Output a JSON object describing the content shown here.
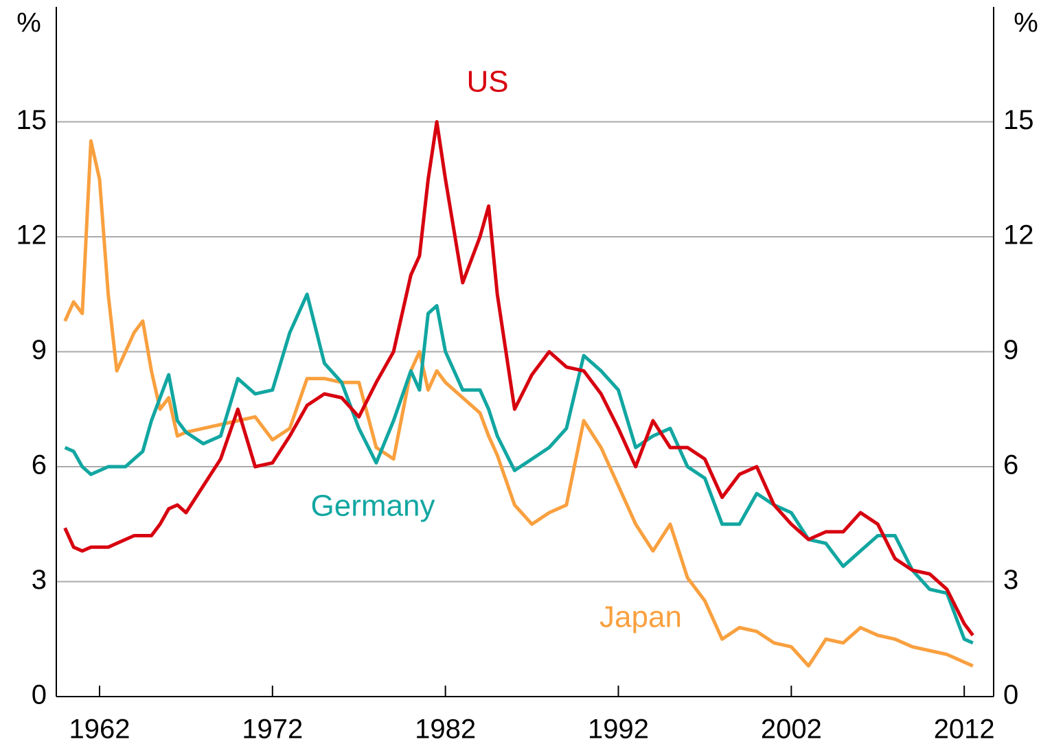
{
  "chart_data": {
    "type": "line",
    "x": [
      1960,
      1960.5,
      1961,
      1961.5,
      1962,
      1962.5,
      1963,
      1963.5,
      1964,
      1964.5,
      1965,
      1965.5,
      1966,
      1966.5,
      1967,
      1968,
      1969,
      1970,
      1971,
      1972,
      1973,
      1974,
      1975,
      1976,
      1977,
      1978,
      1979,
      1980,
      1980.5,
      1981,
      1981.5,
      1982,
      1983,
      1984,
      1984.5,
      1985,
      1986,
      1987,
      1988,
      1989,
      1990,
      1991,
      1992,
      1993,
      1994,
      1995,
      1996,
      1997,
      1998,
      1999,
      2000,
      2001,
      2002,
      2003,
      2004,
      2005,
      2006,
      2007,
      2008,
      2009,
      2010,
      2011,
      2012,
      2012.5
    ],
    "series": [
      {
        "name": "US",
        "color": "#d7000f",
        "values": [
          4.4,
          3.9,
          3.8,
          3.9,
          3.9,
          3.9,
          4.0,
          4.1,
          4.2,
          4.2,
          4.2,
          4.5,
          4.9,
          5.0,
          4.8,
          5.5,
          6.2,
          7.5,
          6.0,
          6.1,
          6.8,
          7.6,
          7.9,
          7.8,
          7.3,
          8.2,
          9.0,
          11.0,
          11.5,
          13.5,
          15.0,
          13.5,
          10.8,
          12.0,
          12.8,
          10.5,
          7.5,
          8.4,
          9.0,
          8.6,
          8.5,
          7.9,
          7.0,
          6.0,
          7.2,
          6.5,
          6.5,
          6.2,
          5.2,
          5.8,
          6.0,
          5.0,
          4.5,
          4.1,
          4.3,
          4.3,
          4.8,
          4.5,
          3.6,
          3.3,
          3.2,
          2.8,
          1.9,
          1.6
        ]
      },
      {
        "name": "Germany",
        "color": "#12a6a1",
        "values": [
          6.5,
          6.4,
          6.0,
          5.8,
          5.9,
          6.0,
          6.0,
          6.0,
          6.2,
          6.4,
          7.2,
          7.8,
          8.4,
          7.2,
          6.9,
          6.6,
          6.8,
          8.3,
          7.9,
          8.0,
          9.5,
          10.5,
          8.7,
          8.2,
          7.0,
          6.1,
          7.2,
          8.5,
          8.0,
          10.0,
          10.2,
          9.0,
          8.0,
          8.0,
          7.5,
          6.8,
          5.9,
          6.2,
          6.5,
          7.0,
          8.9,
          8.5,
          8.0,
          6.5,
          6.8,
          7.0,
          6.0,
          5.7,
          4.5,
          4.5,
          5.3,
          5.0,
          4.8,
          4.1,
          4.0,
          3.4,
          3.8,
          4.2,
          4.2,
          3.3,
          2.8,
          2.7,
          1.5,
          1.4
        ]
      },
      {
        "name": "Japan",
        "color": "#f9a03f",
        "values": [
          9.8,
          10.3,
          10.0,
          14.5,
          13.5,
          10.5,
          8.5,
          9.0,
          9.5,
          9.8,
          8.5,
          7.5,
          7.8,
          6.8,
          6.9,
          7.0,
          7.1,
          7.2,
          7.3,
          6.7,
          7.0,
          8.3,
          8.3,
          8.2,
          8.2,
          6.5,
          6.2,
          8.5,
          9.0,
          8.0,
          8.5,
          8.2,
          7.8,
          7.4,
          6.8,
          6.3,
          5.0,
          4.5,
          4.8,
          5.0,
          7.2,
          6.5,
          5.5,
          4.5,
          3.8,
          4.5,
          3.1,
          2.5,
          1.5,
          1.8,
          1.7,
          1.4,
          1.3,
          0.8,
          1.5,
          1.4,
          1.8,
          1.6,
          1.5,
          1.3,
          1.2,
          1.1,
          0.9,
          0.8
        ]
      }
    ],
    "xlim": [
      1959.5,
      2013.7
    ],
    "xticks": [
      1962,
      1972,
      1982,
      1992,
      2002,
      2012
    ],
    "ylim": [
      0,
      18
    ],
    "yticks": [
      0,
      3,
      6,
      9,
      12,
      15
    ],
    "y2lim": [
      0,
      18
    ],
    "y2ticks": [
      0,
      3,
      6,
      9,
      12,
      15
    ],
    "ylabel": "%",
    "y2label": "%",
    "grid": true
  }
}
